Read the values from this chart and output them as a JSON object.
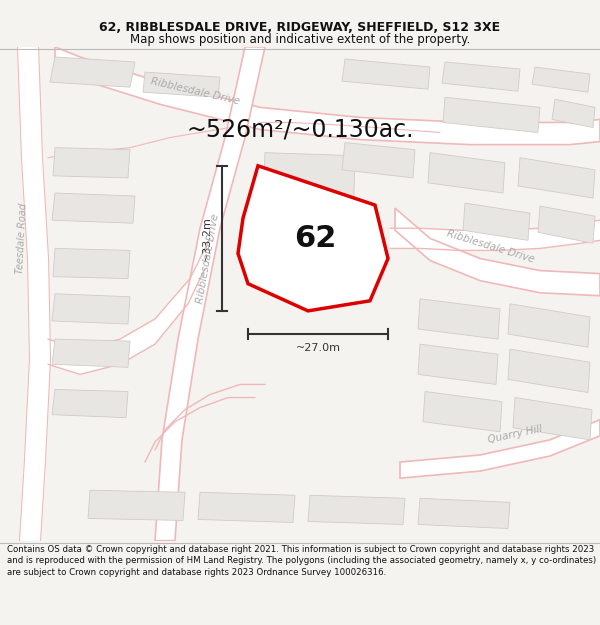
{
  "title_line1": "62, RIBBLESDALE DRIVE, RIDGEWAY, SHEFFIELD, S12 3XE",
  "title_line2": "Map shows position and indicative extent of the property.",
  "area_text": "~526m²/~0.130ac.",
  "property_number": "62",
  "dim_vertical": "~33.2m",
  "dim_horizontal": "~27.0m",
  "footer_text": "Contains OS data © Crown copyright and database right 2021. This information is subject to Crown copyright and database rights 2023 and is reproduced with the permission of HM Land Registry. The polygons (including the associated geometry, namely x, y co-ordinates) are subject to Crown copyright and database rights 2023 Ordnance Survey 100026316.",
  "bg_color": "#f5f3f0",
  "map_bg": "#ffffff",
  "road_outline_color": "#f0b8b8",
  "road_fill_color": "#ffffff",
  "building_fill": "#e8e6e3",
  "building_edge": "#d0ccc8",
  "property_fill": "#ffffff",
  "property_edge": "#dd0000",
  "text_color": "#111111",
  "road_label_color": "#aaaaaa",
  "dim_color": "#333333",
  "title_fontsize": 9,
  "area_fontsize": 17,
  "footer_fontsize": 6.2
}
